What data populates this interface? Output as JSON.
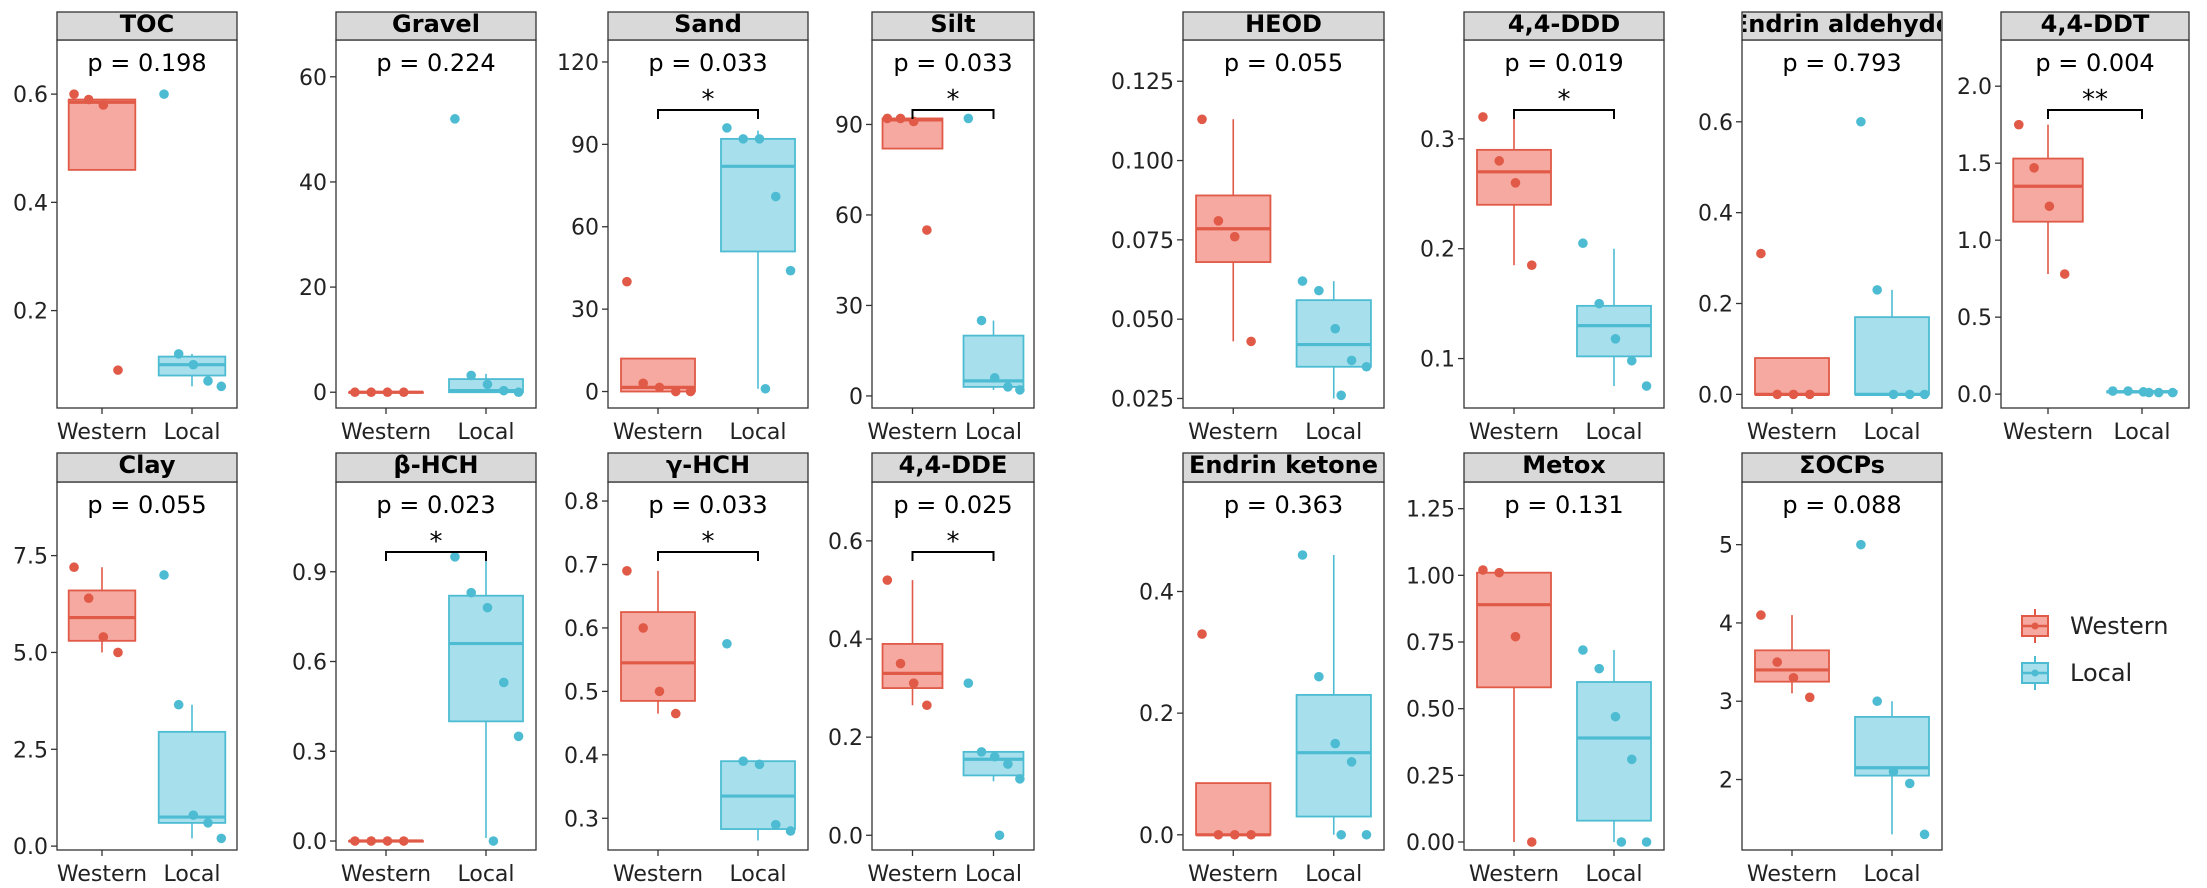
{
  "colors": {
    "western": "#e05a47",
    "western_fill": "#f6a9a0",
    "local": "#4dbcd3",
    "local_fill": "#a7e0ec",
    "strip": "#d9d9d9"
  },
  "chart_data": {
    "type": "boxplot",
    "groups": [
      "Western",
      "Local"
    ],
    "legend": {
      "title": "",
      "entries": [
        "Western",
        "Local"
      ],
      "placement": "right"
    },
    "panels": [
      {
        "title": "TOC",
        "p": "p = 0.198",
        "sig": "",
        "ylim": [
          0.02,
          0.7
        ],
        "yticks": [
          0.2,
          0.4,
          0.6
        ],
        "ytick_labels": [
          "0.2",
          "0.4",
          "0.6"
        ],
        "western": {
          "q1": 0.46,
          "median": 0.585,
          "q3": 0.59,
          "lo": 0.46,
          "hi": 0.59,
          "points": [
            0.6,
            0.59,
            0.58,
            0.09
          ]
        },
        "local": {
          "q1": 0.08,
          "median": 0.1,
          "q3": 0.115,
          "lo": 0.06,
          "hi": 0.12,
          "points": [
            0.6,
            0.12,
            0.1,
            0.07,
            0.06
          ]
        }
      },
      {
        "title": "Gravel",
        "p": "p = 0.224",
        "sig": "",
        "ylim": [
          -3,
          67
        ],
        "yticks": [
          0,
          20,
          40,
          60
        ],
        "ytick_labels": [
          "0",
          "20",
          "40",
          "60"
        ],
        "western": {
          "q1": 0,
          "median": 0,
          "q3": 0,
          "lo": 0,
          "hi": 0,
          "points": [
            0,
            0,
            0,
            0
          ]
        },
        "local": {
          "q1": 0,
          "median": 0.3,
          "q3": 2.5,
          "lo": 0,
          "hi": 3.5,
          "points": [
            52,
            3.2,
            1.5,
            0.3,
            0
          ]
        }
      },
      {
        "title": "Sand",
        "p": "p = 0.033",
        "sig": "*",
        "ylim": [
          -6,
          128
        ],
        "yticks": [
          0,
          30,
          60,
          90,
          120
        ],
        "ytick_labels": [
          "0",
          "30",
          "60",
          "90",
          "120"
        ],
        "western": {
          "q1": 0,
          "median": 1.5,
          "q3": 12,
          "lo": 0,
          "hi": 12,
          "points": [
            40,
            3,
            1.5,
            0,
            0
          ]
        },
        "local": {
          "q1": 51,
          "median": 82,
          "q3": 92,
          "lo": 1,
          "hi": 95,
          "points": [
            96,
            92,
            92,
            71,
            44,
            1
          ]
        }
      },
      {
        "title": "Silt",
        "p": "p = 0.033",
        "sig": "*",
        "ylim": [
          -4,
          118
        ],
        "yticks": [
          0,
          30,
          60,
          90
        ],
        "ytick_labels": [
          "0",
          "30",
          "60",
          "90"
        ],
        "western": {
          "q1": 82,
          "median": 91.5,
          "q3": 92,
          "lo": 82,
          "hi": 92,
          "points": [
            92,
            92,
            91,
            55
          ]
        },
        "local": {
          "q1": 3,
          "median": 5,
          "q3": 20,
          "lo": 2,
          "hi": 25,
          "points": [
            92,
            25,
            6,
            3,
            2
          ]
        }
      },
      {
        "title": "HEOD",
        "p": "p = 0.055",
        "sig": "",
        "ylim": [
          0.022,
          0.138
        ],
        "yticks": [
          0.025,
          0.05,
          0.075,
          0.1,
          0.125
        ],
        "ytick_labels": [
          "0.025",
          "0.050",
          "0.075",
          "0.100",
          "0.125"
        ],
        "western": {
          "q1": 0.068,
          "median": 0.0785,
          "q3": 0.089,
          "lo": 0.043,
          "hi": 0.113,
          "points": [
            0.113,
            0.081,
            0.076,
            0.043
          ]
        },
        "local": {
          "q1": 0.035,
          "median": 0.042,
          "q3": 0.056,
          "lo": 0.025,
          "hi": 0.062,
          "points": [
            0.062,
            0.059,
            0.047,
            0.037,
            0.035,
            0.026
          ]
        }
      },
      {
        "title": "4,4-DDD",
        "p": "p = 0.019",
        "sig": "*",
        "ylim": [
          0.055,
          0.39
        ],
        "yticks": [
          0.1,
          0.2,
          0.3
        ],
        "ytick_labels": [
          "0.1",
          "0.2",
          "0.3"
        ],
        "western": {
          "q1": 0.24,
          "median": 0.27,
          "q3": 0.29,
          "lo": 0.185,
          "hi": 0.32,
          "points": [
            0.32,
            0.28,
            0.26,
            0.185
          ]
        },
        "local": {
          "q1": 0.102,
          "median": 0.13,
          "q3": 0.148,
          "lo": 0.075,
          "hi": 0.2,
          "points": [
            0.205,
            0.15,
            0.118,
            0.098,
            0.075
          ]
        }
      },
      {
        "title": "Endrin aldehyde",
        "p": "p = 0.793",
        "sig": "",
        "ylim": [
          -0.03,
          0.78
        ],
        "yticks": [
          0,
          0.2,
          0.4,
          0.6
        ],
        "ytick_labels": [
          "0.0",
          "0.2",
          "0.4",
          "0.6"
        ],
        "western": {
          "q1": 0,
          "median": 0,
          "q3": 0.08,
          "lo": 0,
          "hi": 0.08,
          "points": [
            0.31,
            0,
            0,
            0
          ]
        },
        "local": {
          "q1": 0,
          "median": 0,
          "q3": 0.17,
          "lo": 0,
          "hi": 0.23,
          "points": [
            0.6,
            0.23,
            0,
            0,
            0
          ]
        }
      },
      {
        "title": "4,4-DDT",
        "p": "p = 0.004",
        "sig": "**",
        "ylim": [
          -0.09,
          2.3
        ],
        "yticks": [
          0,
          0.5,
          1,
          1.5,
          2
        ],
        "ytick_labels": [
          "0.0",
          "0.5",
          "1.0",
          "1.5",
          "2.0"
        ],
        "western": {
          "q1": 1.12,
          "median": 1.35,
          "q3": 1.53,
          "lo": 0.78,
          "hi": 1.75,
          "points": [
            1.75,
            1.47,
            1.22,
            0.78
          ]
        },
        "local": {
          "q1": 0.01,
          "median": 0.015,
          "q3": 0.02,
          "lo": 0.005,
          "hi": 0.025,
          "points": [
            0.02,
            0.02,
            0.015,
            0.01,
            0.01,
            0.01
          ]
        }
      },
      {
        "title": "Clay",
        "p": "p = 0.055",
        "sig": "",
        "ylim": [
          -0.1,
          9.4
        ],
        "yticks": [
          0,
          2.5,
          5,
          7.5
        ],
        "ytick_labels": [
          "0.0",
          "2.5",
          "5.0",
          "7.5"
        ],
        "western": {
          "q1": 5.3,
          "median": 5.9,
          "q3": 6.6,
          "lo": 5.0,
          "hi": 7.2,
          "points": [
            7.2,
            6.4,
            5.4,
            5.0
          ]
        },
        "local": {
          "q1": 0.6,
          "median": 0.75,
          "q3": 2.95,
          "lo": 0.2,
          "hi": 3.65,
          "points": [
            7.0,
            3.65,
            0.8,
            0.6,
            0.2
          ]
        }
      },
      {
        "title": "β-HCH",
        "p": "p = 0.023",
        "sig": "*",
        "ylim": [
          -0.03,
          1.2
        ],
        "yticks": [
          0,
          0.3,
          0.6,
          0.9
        ],
        "ytick_labels": [
          "0.0",
          "0.3",
          "0.6",
          "0.9"
        ],
        "western": {
          "q1": 0,
          "median": 0,
          "q3": 0,
          "lo": 0,
          "hi": 0,
          "points": [
            0,
            0,
            0,
            0
          ]
        },
        "local": {
          "q1": 0.4,
          "median": 0.66,
          "q3": 0.82,
          "lo": 0.01,
          "hi": 0.95,
          "points": [
            0.95,
            0.83,
            0.78,
            0.53,
            0.35,
            0
          ]
        }
      },
      {
        "title": "γ-HCH",
        "p": "p = 0.033",
        "sig": "*",
        "ylim": [
          0.25,
          0.83
        ],
        "yticks": [
          0.3,
          0.4,
          0.5,
          0.6,
          0.7,
          0.8
        ],
        "ytick_labels": [
          "0.3",
          "0.4",
          "0.5",
          "0.6",
          "0.7",
          "0.8"
        ],
        "western": {
          "q1": 0.485,
          "median": 0.545,
          "q3": 0.625,
          "lo": 0.465,
          "hi": 0.69,
          "points": [
            0.69,
            0.6,
            0.5,
            0.465
          ]
        },
        "local": {
          "q1": 0.283,
          "median": 0.335,
          "q3": 0.39,
          "lo": 0.265,
          "hi": 0.39,
          "points": [
            0.575,
            0.39,
            0.385,
            0.29,
            0.28
          ]
        }
      },
      {
        "title": "4,4-DDE",
        "p": "p = 0.025",
        "sig": "*",
        "ylim": [
          -0.03,
          0.72
        ],
        "yticks": [
          0,
          0.2,
          0.4,
          0.6
        ],
        "ytick_labels": [
          "0.0",
          "0.2",
          "0.4",
          "0.6"
        ],
        "western": {
          "q1": 0.3,
          "median": 0.33,
          "q3": 0.39,
          "lo": 0.265,
          "hi": 0.52,
          "points": [
            0.52,
            0.35,
            0.31,
            0.265
          ]
        },
        "local": {
          "q1": 0.122,
          "median": 0.155,
          "q3": 0.17,
          "lo": 0.11,
          "hi": 0.17,
          "points": [
            0.31,
            0.17,
            0.16,
            0.145,
            0.115,
            0
          ]
        }
      },
      {
        "title": "Endrin ketone",
        "p": "p = 0.363",
        "sig": "",
        "ylim": [
          -0.025,
          0.58
        ],
        "yticks": [
          0,
          0.2,
          0.4
        ],
        "ytick_labels": [
          "0.0",
          "0.2",
          "0.4"
        ],
        "western": {
          "q1": 0,
          "median": 0,
          "q3": 0.085,
          "lo": 0,
          "hi": 0.085,
          "points": [
            0.33,
            0,
            0,
            0
          ]
        },
        "local": {
          "q1": 0.03,
          "median": 0.135,
          "q3": 0.23,
          "lo": 0,
          "hi": 0.46,
          "points": [
            0.46,
            0.26,
            0.15,
            0.12,
            0,
            0
          ]
        }
      },
      {
        "title": "Metox",
        "p": "p = 0.131",
        "sig": "",
        "ylim": [
          -0.03,
          1.35
        ],
        "yticks": [
          0,
          0.25,
          0.5,
          0.75,
          1,
          1.25
        ],
        "ytick_labels": [
          "0.00",
          "0.25",
          "0.50",
          "0.75",
          "1.00",
          "1.25"
        ],
        "western": {
          "q1": 0.58,
          "median": 0.89,
          "q3": 1.01,
          "lo": 0,
          "hi": 1.01,
          "points": [
            1.02,
            1.01,
            0.77,
            0
          ]
        },
        "local": {
          "q1": 0.08,
          "median": 0.39,
          "q3": 0.6,
          "lo": 0,
          "hi": 0.72,
          "points": [
            0.72,
            0.65,
            0.47,
            0.31,
            0,
            0
          ]
        }
      },
      {
        "title": "ΣOCPs",
        "p": "p = 0.088",
        "sig": "",
        "ylim": [
          1.1,
          5.8
        ],
        "yticks": [
          2,
          3,
          4,
          5
        ],
        "ytick_labels": [
          "2",
          "3",
          "4",
          "5"
        ],
        "western": {
          "q1": 3.25,
          "median": 3.4,
          "q3": 3.65,
          "lo": 3.1,
          "hi": 4.1,
          "points": [
            4.1,
            3.5,
            3.3,
            3.05
          ]
        },
        "local": {
          "q1": 2.05,
          "median": 2.15,
          "q3": 2.8,
          "lo": 1.3,
          "hi": 3.0,
          "points": [
            5.0,
            3.0,
            2.1,
            1.95,
            1.3
          ]
        }
      }
    ]
  }
}
